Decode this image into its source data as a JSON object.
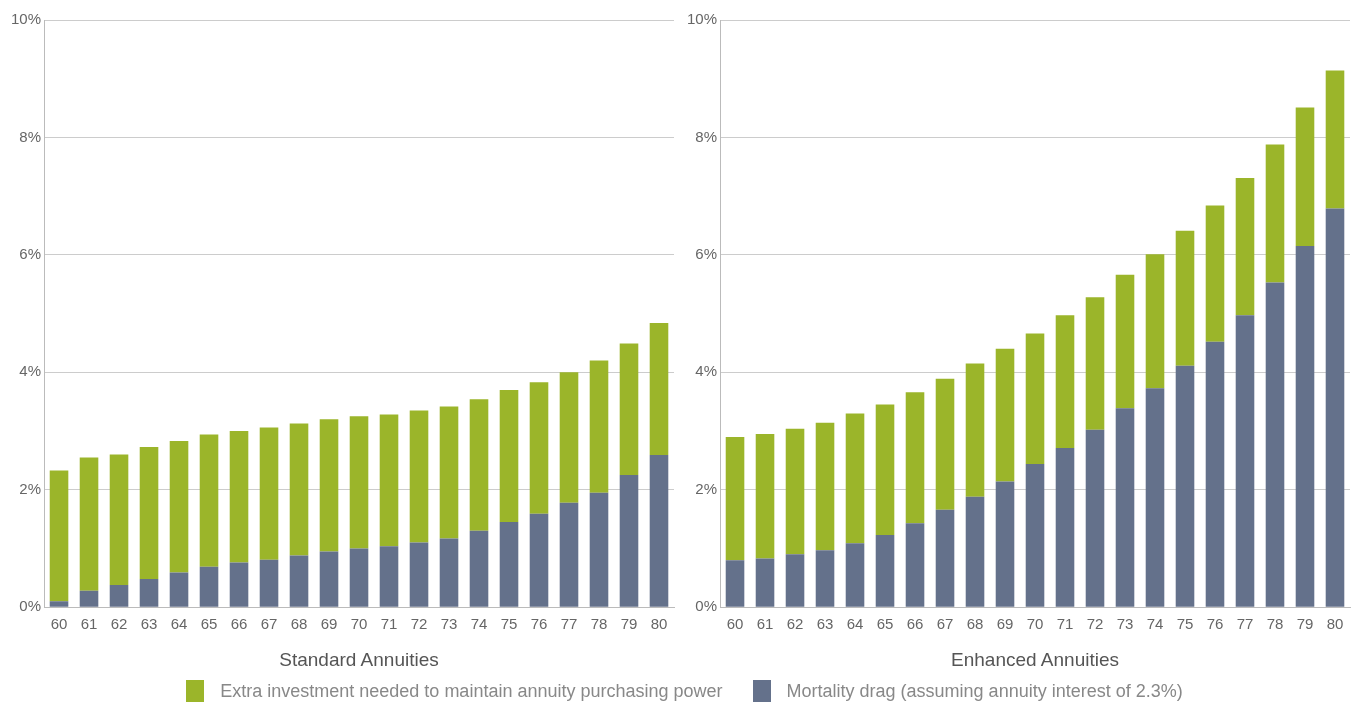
{
  "chart_data": [
    {
      "type": "bar",
      "stacked": true,
      "xlabel": "Standard Annuities",
      "categories": [
        "60",
        "61",
        "62",
        "63",
        "64",
        "65",
        "66",
        "67",
        "68",
        "69",
        "70",
        "71",
        "72",
        "73",
        "74",
        "75",
        "76",
        "77",
        "78",
        "79",
        "80"
      ],
      "ylim": [
        0,
        10
      ],
      "yticks": [
        {
          "value": 0,
          "label": "0%"
        },
        {
          "value": 2,
          "label": "2%"
        },
        {
          "value": 4,
          "label": "4%"
        },
        {
          "value": 6,
          "label": "6%"
        },
        {
          "value": 8,
          "label": "8%"
        },
        {
          "value": 10,
          "label": "10%"
        }
      ],
      "grid": "y",
      "legend": "bottom",
      "series": [
        {
          "name": "Mortality drag (assuming annuity interest of 2.3%)",
          "color": "#64718b",
          "values": [
            0.1,
            0.28,
            0.38,
            0.48,
            0.59,
            0.69,
            0.76,
            0.81,
            0.88,
            0.95,
            1.0,
            1.04,
            1.1,
            1.17,
            1.3,
            1.45,
            1.59,
            1.78,
            1.95,
            2.25,
            2.59
          ]
        },
        {
          "name": "Extra investment needed to maintain annuity purchasing power",
          "color": "#9bb52a",
          "values": [
            2.23,
            2.27,
            2.22,
            2.25,
            2.24,
            2.25,
            2.24,
            2.25,
            2.25,
            2.25,
            2.25,
            2.24,
            2.25,
            2.25,
            2.24,
            2.25,
            2.24,
            2.22,
            2.25,
            2.24,
            2.25
          ]
        }
      ]
    },
    {
      "type": "bar",
      "stacked": true,
      "xlabel": "Enhanced Annuities",
      "categories": [
        "60",
        "61",
        "62",
        "63",
        "64",
        "65",
        "66",
        "67",
        "68",
        "69",
        "70",
        "71",
        "72",
        "73",
        "74",
        "75",
        "76",
        "77",
        "78",
        "79",
        "80"
      ],
      "ylim": [
        0,
        10
      ],
      "yticks": [
        {
          "value": 0,
          "label": "0%"
        },
        {
          "value": 2,
          "label": "2%"
        },
        {
          "value": 4,
          "label": "4%"
        },
        {
          "value": 6,
          "label": "6%"
        },
        {
          "value": 8,
          "label": "8%"
        },
        {
          "value": 10,
          "label": "10%"
        }
      ],
      "grid": "y",
      "series": [
        {
          "color": "#64718b",
          "values": [
            0.8,
            0.83,
            0.9,
            0.97,
            1.09,
            1.23,
            1.43,
            1.66,
            1.88,
            2.14,
            2.44,
            2.71,
            3.02,
            3.39,
            3.73,
            4.11,
            4.52,
            4.97,
            5.53,
            6.15,
            6.79
          ]
        },
        {
          "color": "#9bb52a",
          "values": [
            2.1,
            2.12,
            2.14,
            2.17,
            2.21,
            2.22,
            2.23,
            2.23,
            2.27,
            2.26,
            2.22,
            2.26,
            2.26,
            2.27,
            2.28,
            2.3,
            2.32,
            2.34,
            2.35,
            2.36,
            2.35
          ]
        }
      ]
    }
  ]
}
